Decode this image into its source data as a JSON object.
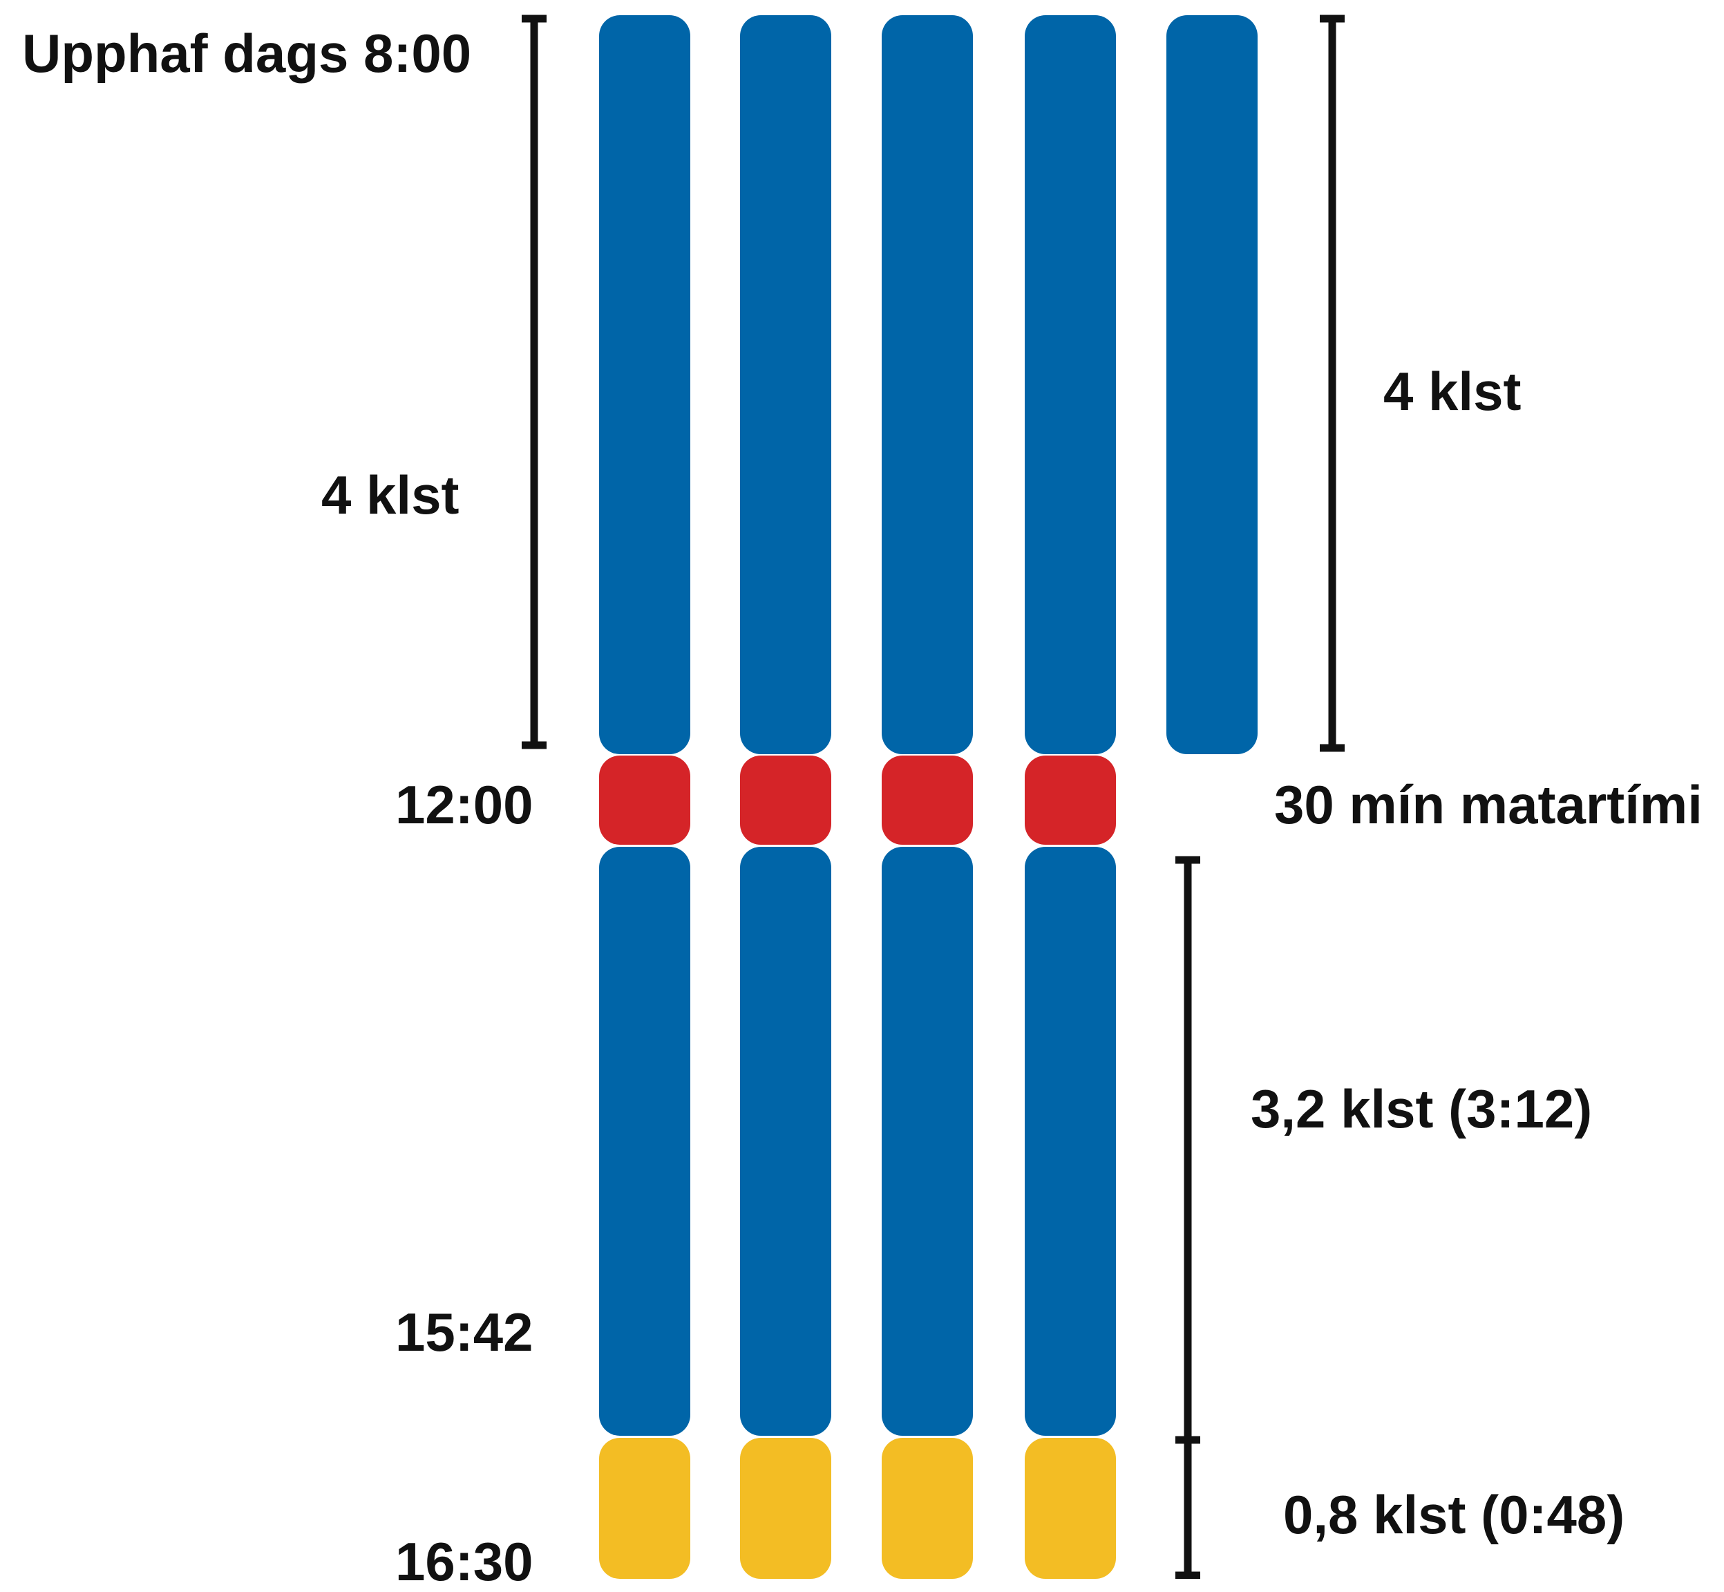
{
  "colors": {
    "work": "#0065A8",
    "lunch": "#D52428",
    "end_block": "#F3BD24",
    "ink": "#111111"
  },
  "labels": {
    "start": "Upphaf dags 8:00",
    "left_span": "4 klst",
    "right_span": "4 klst",
    "lunch_time": "12:00",
    "lunch_span": "30 mín matartími",
    "afternoon_end": "15:42",
    "afternoon_span": "3,2 klst (3:12)",
    "day_end": "16:30",
    "end_span": "0,8 klst (0:48)"
  },
  "columns": [
    {
      "morning": true,
      "lunch": true,
      "afternoon": true,
      "end_block": true
    },
    {
      "morning": true,
      "lunch": true,
      "afternoon": true,
      "end_block": true
    },
    {
      "morning": true,
      "lunch": true,
      "afternoon": true,
      "end_block": true
    },
    {
      "morning": true,
      "lunch": true,
      "afternoon": true,
      "end_block": true
    },
    {
      "morning": true,
      "lunch": false,
      "afternoon": false,
      "end_block": false
    }
  ]
}
